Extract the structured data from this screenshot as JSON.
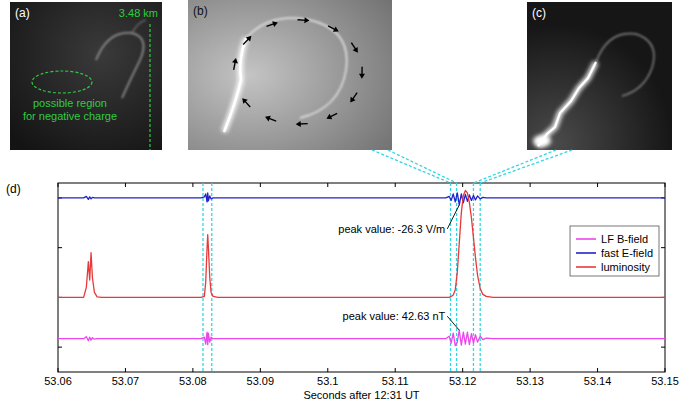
{
  "images": [
    {
      "label": "(a)",
      "scale_text": "3.48 km",
      "region_text": [
        "possible region",
        "for negative charge"
      ]
    },
    {
      "label": "(b)"
    },
    {
      "label": "(c)"
    }
  ],
  "chart_data": {
    "type": "line",
    "panel": "(d)",
    "xlabel": "Seconds after 12:31 UT",
    "xlim": [
      53.06,
      53.15
    ],
    "xticks": [
      53.06,
      53.07,
      53.08,
      53.09,
      53.1,
      53.11,
      53.12,
      53.13,
      53.14,
      53.15
    ],
    "ylim": [
      -0.5,
      3.3
    ],
    "yticks": [
      0,
      1,
      2,
      3
    ],
    "tick_labels": "x",
    "legend": "right",
    "x": [
      53.06,
      53.0638,
      53.0642,
      53.0645,
      53.0647,
      53.0649,
      53.0651,
      53.0654,
      53.0658,
      53.0665,
      53.075,
      53.0812,
      53.0817,
      53.0819,
      53.0821,
      53.0822,
      53.0823,
      53.0825,
      53.0827,
      53.083,
      53.0837,
      53.09,
      53.11,
      53.1175,
      53.118,
      53.1183,
      53.1186,
      53.1189,
      53.1192,
      53.1195,
      53.1198,
      53.1201,
      53.1204,
      53.1207,
      53.121,
      53.1213,
      53.1216,
      53.1219,
      53.1222,
      53.1226,
      53.123,
      53.1235,
      53.1245,
      53.13,
      53.15
    ],
    "series": [
      {
        "name": "LF B-field",
        "color": "#ee44ee",
        "values": [
          0.17,
          0.17,
          0.21,
          0.13,
          0.2,
          0.14,
          0.19,
          0.16,
          0.17,
          0.17,
          0.17,
          0.17,
          0.2,
          0.06,
          0.3,
          0.05,
          0.28,
          0.1,
          0.2,
          0.17,
          0.17,
          0.17,
          0.17,
          0.17,
          0.22,
          0.08,
          0.28,
          0.03,
          0.1,
          0.34,
          0.04,
          0.3,
          0.06,
          0.3,
          0.05,
          0.27,
          0.08,
          0.25,
          0.1,
          0.22,
          0.15,
          0.18,
          0.17,
          0.17,
          0.17
        ]
      },
      {
        "name": "fast E-field",
        "color": "#2222cc",
        "values": [
          3,
          3,
          3.03,
          2.97,
          3.02,
          2.98,
          3.01,
          3,
          3,
          3,
          3,
          3,
          3.02,
          3.08,
          2.92,
          3.1,
          2.94,
          3.04,
          2.98,
          3,
          3,
          3,
          3,
          3,
          3.03,
          2.95,
          3.08,
          2.92,
          3.1,
          2.86,
          3.08,
          2.9,
          3.07,
          2.93,
          3.06,
          2.95,
          3.05,
          2.96,
          3.04,
          2.98,
          3.01,
          3,
          3,
          3,
          3
        ]
      },
      {
        "name": "luminosity",
        "color": "#e8393a",
        "values": [
          1,
          1,
          1.2,
          1.72,
          1.35,
          1.9,
          1.4,
          1.1,
          1.01,
          1,
          1,
          1,
          1.02,
          1.3,
          2.0,
          2.26,
          2.0,
          1.4,
          1.1,
          1.02,
          1,
          1,
          1,
          1,
          1,
          1.02,
          1.05,
          1.15,
          1.5,
          2.1,
          2.7,
          3.05,
          3.15,
          3.1,
          2.9,
          2.6,
          2.2,
          1.8,
          1.45,
          1.18,
          1.06,
          1.02,
          1,
          1,
          1
        ]
      }
    ],
    "annotations": [
      {
        "text": "peak value: -26.3 V/m",
        "x": 53.1195,
        "y": 2.86
      },
      {
        "text": "peak value: 42.63 nT",
        "x": 53.1195,
        "y": 0.34
      }
    ],
    "highlight_windows": [
      [
        53.0815,
        53.0828
      ],
      [
        53.1182,
        53.1191
      ],
      [
        53.1216,
        53.1226
      ]
    ]
  }
}
